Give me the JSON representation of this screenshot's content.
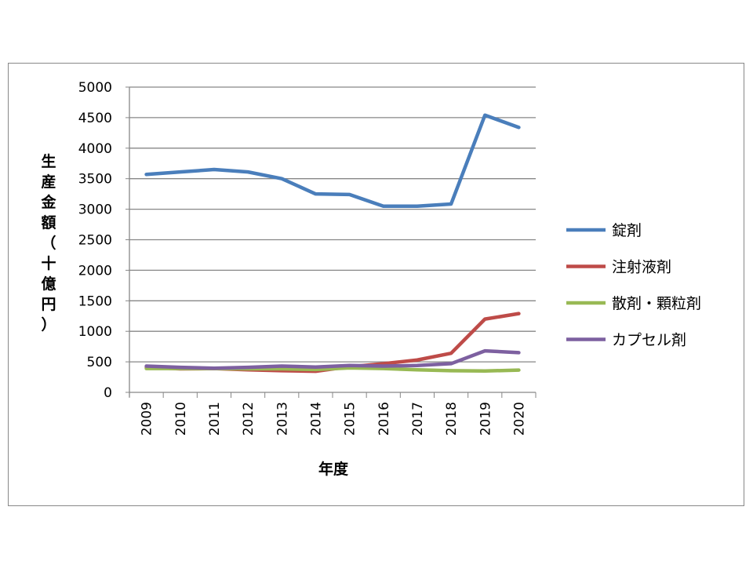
{
  "chart_data": {
    "type": "line",
    "title": "",
    "xlabel": "年度",
    "ylabel": "生産金額（十億円）",
    "ylim": [
      0,
      5000
    ],
    "yticks": [
      0,
      500,
      1000,
      1500,
      2000,
      2500,
      3000,
      3500,
      4000,
      4500,
      5000
    ],
    "grid": true,
    "legend": "right",
    "categories": [
      "2009",
      "2010",
      "2011",
      "2012",
      "2013",
      "2014",
      "2015",
      "2016",
      "2017",
      "2018",
      "2019",
      "2020"
    ],
    "series": [
      {
        "name": "錠剤",
        "color": "#4a7ebb",
        "values": [
          3570,
          3610,
          3650,
          3610,
          3500,
          3250,
          3240,
          3050,
          3050,
          3085,
          4540,
          4340
        ]
      },
      {
        "name": "注射液剤",
        "color": "#be4b48",
        "values": [
          410,
          385,
          390,
          370,
          355,
          345,
          420,
          470,
          530,
          640,
          1200,
          1290
        ]
      },
      {
        "name": "散剤・顆粒剤",
        "color": "#98b954",
        "values": [
          390,
          390,
          390,
          385,
          385,
          375,
          400,
          390,
          370,
          355,
          350,
          365
        ]
      },
      {
        "name": "カプセル剤",
        "color": "#7d60a0",
        "values": [
          430,
          410,
          395,
          410,
          430,
          415,
          440,
          430,
          440,
          470,
          680,
          650
        ]
      }
    ]
  }
}
